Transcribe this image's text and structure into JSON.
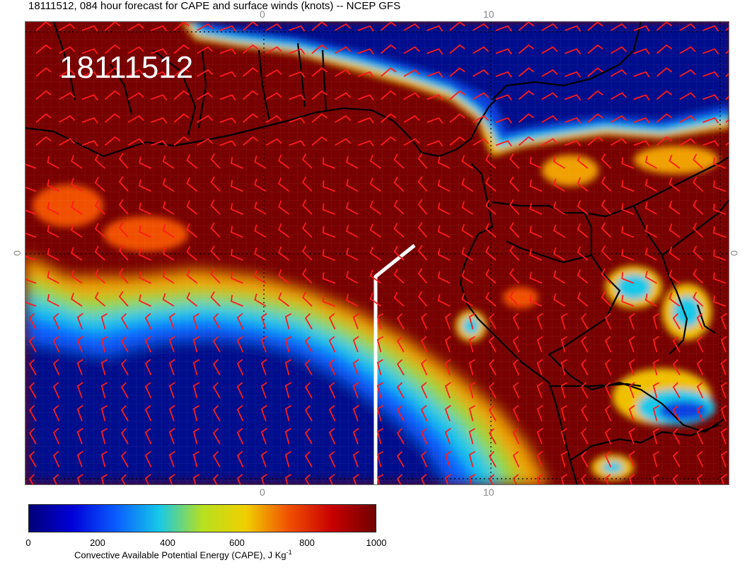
{
  "title": "18111512, 084 hour forecast for CAPE and surface winds (knots) -- NCEP GFS",
  "stamp": "18111512",
  "edge_labels": {
    "top_0": "0",
    "top_10": "10",
    "bottom_0": "0",
    "bottom_10": "10",
    "left_0": "0",
    "right_0": "0"
  },
  "colorbar": {
    "ticks": [
      "0",
      "200",
      "400",
      "600",
      "800",
      "1000"
    ],
    "label_main": "Convective Available Potential Energy (CAPE), J Kg",
    "label_sup": "-1",
    "colors": [
      "#00007a",
      "#0000d8",
      "#0a5cff",
      "#16c8e8",
      "#b6e020",
      "#f0d000",
      "#f05000",
      "#c80000",
      "#700000"
    ]
  },
  "map_colors": {
    "high": "#780000",
    "ocean_low": "#000c8c",
    "wind_barb": "#ff1a1a",
    "coast": "#000000",
    "annotation": "#ffffff"
  }
}
